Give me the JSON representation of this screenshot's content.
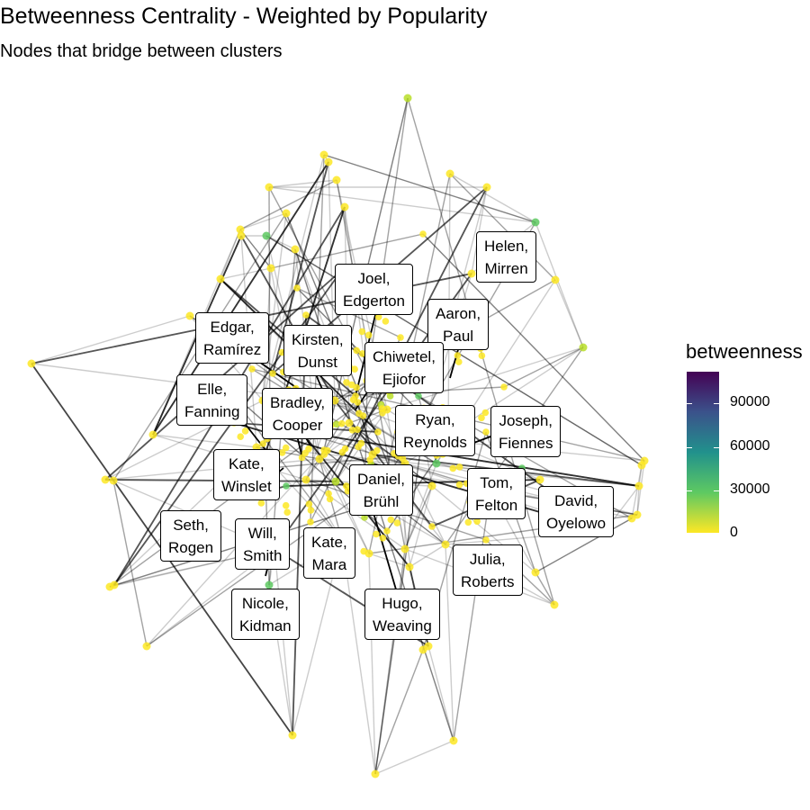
{
  "title": "Betweenness Centrality - Weighted by Popularity",
  "subtitle": "Nodes that bridge between clusters",
  "legend": {
    "title": "betweenness",
    "ticks": [
      "90000",
      "60000",
      "30000",
      "0"
    ],
    "tick_values": [
      90000,
      60000,
      30000,
      0
    ],
    "max": 110000,
    "colors": [
      "#440154",
      "#3b528b",
      "#21918c",
      "#5ec962",
      "#fde725"
    ]
  },
  "labels": [
    {
      "line1": "Helen,",
      "line2": "Mirren"
    },
    {
      "line1": "Joel,",
      "line2": "Edgerton"
    },
    {
      "line1": "Aaron,",
      "line2": "Paul"
    },
    {
      "line1": "Edgar,",
      "line2": "Ramírez"
    },
    {
      "line1": "Kirsten,",
      "line2": "Dunst"
    },
    {
      "line1": "Chiwetel,",
      "line2": "Ejiofor"
    },
    {
      "line1": "Elle,",
      "line2": "Fanning"
    },
    {
      "line1": "Bradley,",
      "line2": "Cooper"
    },
    {
      "line1": "Ryan,",
      "line2": "Reynolds"
    },
    {
      "line1": "Joseph,",
      "line2": "Fiennes"
    },
    {
      "line1": "Kate,",
      "line2": "Winslet"
    },
    {
      "line1": "Daniel,",
      "line2": "Brühl"
    },
    {
      "line1": "Tom,",
      "line2": "Felton"
    },
    {
      "line1": "David,",
      "line2": "Oyelowo"
    },
    {
      "line1": "Seth,",
      "line2": "Rogen"
    },
    {
      "line1": "Will,",
      "line2": "Smith"
    },
    {
      "line1": "Kate,",
      "line2": "Mara"
    },
    {
      "line1": "Julia,",
      "line2": "Roberts"
    },
    {
      "line1": "Nicole,",
      "line2": "Kidman"
    },
    {
      "line1": "Hugo,",
      "line2": "Weaving"
    }
  ]
}
